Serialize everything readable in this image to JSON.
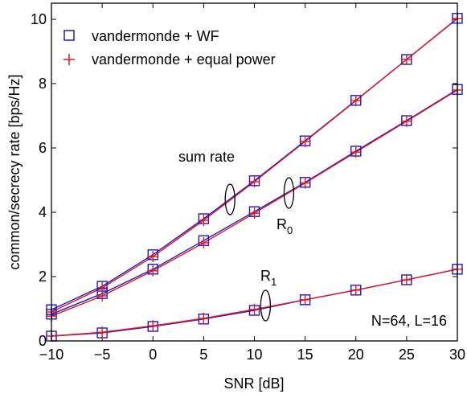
{
  "chart_data": {
    "type": "line",
    "xlabel": "SNR [dB]",
    "ylabel": "common/secrecy rate [bps/Hz]",
    "xlim": [
      -10,
      30
    ],
    "ylim": [
      0,
      10.5
    ],
    "xticks": [
      -10,
      -5,
      0,
      5,
      10,
      15,
      20,
      25,
      30
    ],
    "yticks": [
      0,
      2,
      4,
      6,
      8,
      10
    ],
    "x": [
      -10,
      -5,
      0,
      5,
      10,
      15,
      20,
      25,
      30
    ],
    "legend": [
      {
        "label": "vandermonde + WF",
        "marker": "square",
        "color": "#1a1acc"
      },
      {
        "label": "vandermonde + equal power",
        "marker": "plus",
        "color": "#e8141e"
      }
    ],
    "legend_position": "top-left",
    "series": [
      {
        "group": "sum rate",
        "method": "vandermonde + WF",
        "values": [
          0.97,
          1.7,
          2.68,
          3.8,
          4.98,
          6.22,
          7.48,
          8.75,
          10.03
        ]
      },
      {
        "group": "sum rate",
        "method": "vandermonde + equal power",
        "values": [
          0.9,
          1.65,
          2.62,
          3.75,
          4.95,
          6.2,
          7.47,
          8.75,
          10.02
        ]
      },
      {
        "group": "R0",
        "method": "vandermonde + WF",
        "values": [
          0.83,
          1.47,
          2.23,
          3.12,
          4.02,
          4.93,
          5.9,
          6.85,
          7.82
        ]
      },
      {
        "group": "R0",
        "method": "vandermonde + equal power",
        "values": [
          0.77,
          1.4,
          2.18,
          3.05,
          3.97,
          4.91,
          5.87,
          6.83,
          7.8
        ]
      },
      {
        "group": "R1",
        "method": "vandermonde + WF",
        "values": [
          0.15,
          0.25,
          0.45,
          0.68,
          0.95,
          1.28,
          1.58,
          1.9,
          2.23
        ]
      },
      {
        "group": "R1",
        "method": "vandermonde + equal power",
        "values": [
          0.15,
          0.27,
          0.47,
          0.7,
          0.98,
          1.28,
          1.58,
          1.9,
          2.23
        ]
      }
    ],
    "annotations": {
      "sum_rate": "sum rate",
      "r0_main": "R",
      "r0_sub": "0",
      "r1_main": "R",
      "r1_sub": "1",
      "params": "N=64, L=16"
    },
    "grid": false,
    "colors": {
      "wf": "#1a1acc",
      "equal": "#e8141e",
      "axis": "#000000"
    }
  }
}
